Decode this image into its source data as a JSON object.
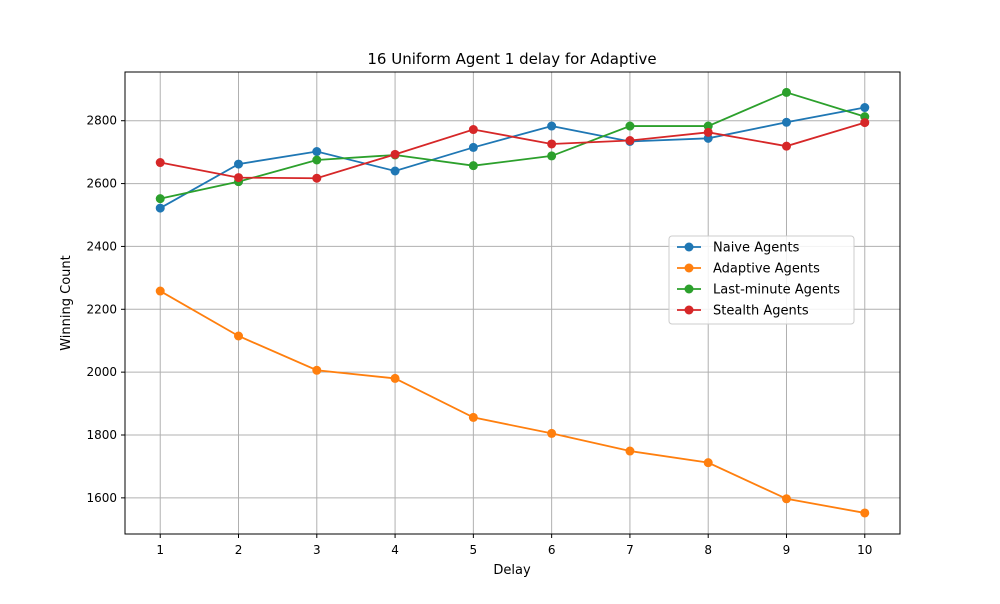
{
  "chart_data": {
    "type": "line",
    "title": "16 Uniform Agent 1 delay for Adaptive",
    "xlabel": "Delay",
    "ylabel": "Winning Count",
    "x": [
      1,
      2,
      3,
      4,
      5,
      6,
      7,
      8,
      9,
      10
    ],
    "xlim": [
      0.55,
      10.45
    ],
    "ylim": [
      1485,
      2955
    ],
    "xticks": [
      1,
      2,
      3,
      4,
      5,
      6,
      7,
      8,
      9,
      10
    ],
    "yticks": [
      1600,
      1800,
      2000,
      2200,
      2400,
      2600,
      2800
    ],
    "grid": true,
    "legend_position": "center-right",
    "series": [
      {
        "name": "Naive Agents",
        "color": "#1f77b4",
        "values": [
          2522,
          2662,
          2702,
          2640,
          2715,
          2783,
          2734,
          2744,
          2795,
          2842
        ]
      },
      {
        "name": "Adaptive Agents",
        "color": "#ff7f0e",
        "values": [
          2258,
          2115,
          2006,
          1980,
          1856,
          1805,
          1749,
          1712,
          1597,
          1552
        ]
      },
      {
        "name": "Last-minute Agents",
        "color": "#2ca02c",
        "values": [
          2552,
          2606,
          2675,
          2691,
          2657,
          2688,
          2783,
          2783,
          2890,
          2813
        ]
      },
      {
        "name": "Stealth Agents",
        "color": "#d62728",
        "values": [
          2667,
          2619,
          2617,
          2693,
          2772,
          2726,
          2737,
          2763,
          2719,
          2794
        ]
      }
    ]
  }
}
